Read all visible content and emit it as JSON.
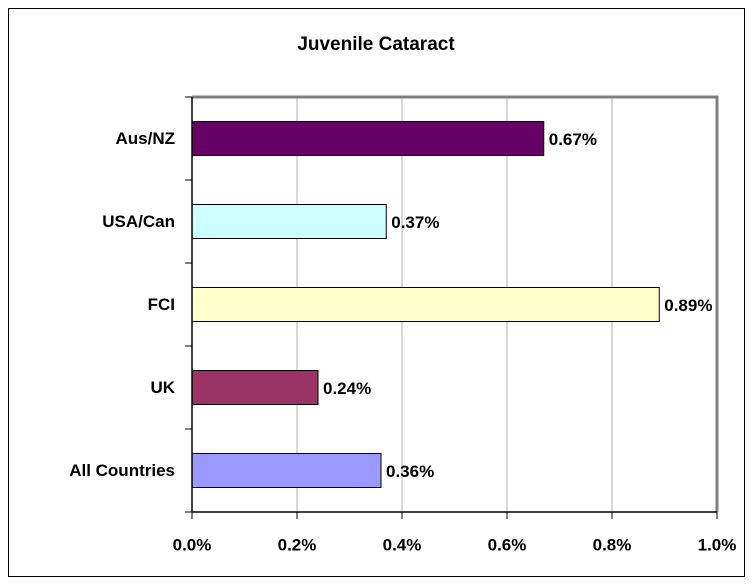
{
  "chart_data": {
    "type": "hbar",
    "title": "Juvenile Cataract",
    "categories": [
      "Aus/NZ",
      "USA/Can",
      "FCI",
      "UK",
      "All Countries"
    ],
    "values": [
      0.67,
      0.37,
      0.89,
      0.24,
      0.36
    ],
    "value_labels": [
      "0.67%",
      "0.37%",
      "0.89%",
      "0.24%",
      "0.36%"
    ],
    "colors": [
      "#660066",
      "#ccffff",
      "#ffffcc",
      "#993366",
      "#9999ff"
    ],
    "xlim": [
      0,
      1
    ],
    "xticks": [
      {
        "value": 0,
        "label": "0.0%"
      },
      {
        "value": 0.2,
        "label": "0.2%"
      },
      {
        "value": 0.4,
        "label": "0.4%"
      },
      {
        "value": 0.6,
        "label": "0.6%"
      },
      {
        "value": 0.8,
        "label": "0.8%"
      },
      {
        "value": 1,
        "label": "1.0%"
      }
    ],
    "grid": true
  }
}
